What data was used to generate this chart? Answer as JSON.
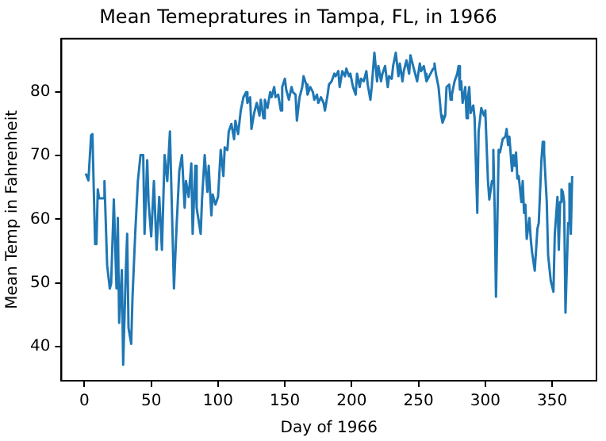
{
  "chart_data": {
    "type": "line",
    "title": "Mean Temepratures in Tampa, FL, in 1966",
    "xlabel": "Day of 1966",
    "ylabel": "Mean Temp in Fahrenheit",
    "xlim": [
      -17.2,
      383.2
    ],
    "ylim": [
      34.6,
      88.4
    ],
    "xticks": [
      0,
      50,
      100,
      150,
      200,
      250,
      300,
      350
    ],
    "yticks": [
      40,
      50,
      60,
      70,
      80
    ],
    "grid": false,
    "legend": false,
    "marker": "none",
    "line_style": "solid",
    "series": [
      {
        "color": "#1f77b4",
        "x": [
          1,
          3,
          5,
          6,
          8,
          9,
          10,
          11,
          14,
          15,
          17,
          19,
          20,
          22,
          24,
          25,
          26,
          28,
          29,
          31,
          32,
          33,
          35,
          36,
          38,
          40,
          42,
          44,
          45,
          47,
          48,
          50,
          52,
          54,
          56,
          58,
          60,
          62,
          64,
          67,
          69,
          71,
          73,
          75,
          76,
          78,
          80,
          81,
          83,
          84,
          87,
          88,
          90,
          92,
          93,
          95,
          96,
          98,
          100,
          102,
          104,
          105,
          107,
          108,
          110,
          112,
          113,
          115,
          117,
          119,
          121,
          122,
          124,
          125,
          127,
          129,
          131,
          132,
          134,
          135,
          137,
          139,
          140,
          142,
          143,
          145,
          147,
          148,
          150,
          151,
          153,
          155,
          156,
          158,
          159,
          161,
          163,
          164,
          166,
          167,
          169,
          171,
          172,
          174,
          175,
          177,
          179,
          180,
          182,
          183,
          185,
          187,
          188,
          190,
          191,
          193,
          195,
          196,
          198,
          199,
          201,
          203,
          204,
          206,
          207,
          209,
          211,
          212,
          214,
          215,
          217,
          219,
          220,
          222,
          223,
          225,
          227,
          228,
          230,
          231,
          233,
          235,
          236,
          238,
          239,
          241,
          243,
          244,
          246,
          247,
          249,
          251,
          252,
          254,
          255,
          256,
          258,
          259,
          261,
          262,
          263,
          265,
          267,
          268,
          270,
          271,
          273,
          274,
          275,
          277,
          279,
          280,
          281,
          282,
          283,
          285,
          286,
          287,
          288,
          289,
          291,
          292,
          294,
          295,
          297,
          299,
          300,
          302,
          303,
          305,
          306,
          307,
          308,
          310,
          311,
          313,
          315,
          316,
          317,
          318,
          320,
          321,
          322,
          323,
          324,
          325,
          327,
          328,
          329,
          330,
          331,
          333,
          334,
          335,
          337,
          339,
          340,
          342,
          343,
          344,
          346,
          347,
          349,
          351,
          352,
          354,
          355,
          356,
          357,
          358,
          359,
          360,
          362,
          363,
          364,
          365
        ],
        "values": [
          67.2,
          66.1,
          73.2,
          73.4,
          56.1,
          56.1,
          64.7,
          63.3,
          63.3,
          66,
          52.8,
          49.1,
          49.9,
          63.1,
          49.1,
          60.2,
          43.7,
          52,
          37.1,
          52,
          57.7,
          42.9,
          40.4,
          47.8,
          57.7,
          66,
          70.1,
          70.1,
          57.7,
          69.3,
          62.7,
          57.3,
          66,
          55.2,
          63.5,
          55.2,
          70.1,
          66,
          73.8,
          49.1,
          59,
          67.6,
          70.1,
          61.8,
          66,
          63.5,
          68.8,
          57.7,
          68.4,
          61.8,
          57.7,
          63.1,
          70.1,
          64.3,
          68.4,
          60.6,
          63.9,
          62.3,
          63.5,
          70.9,
          66.8,
          71.3,
          70.9,
          73.8,
          75,
          72.6,
          75.5,
          73.4,
          77.1,
          79.2,
          80,
          78.3,
          79.2,
          74.2,
          76.7,
          78.3,
          76.3,
          78.8,
          75.9,
          78.8,
          77.5,
          80,
          79.2,
          80.8,
          79.2,
          79.6,
          77.1,
          80.8,
          82.1,
          80.4,
          78.8,
          80.8,
          80,
          79.6,
          75.5,
          79.2,
          80.8,
          82.5,
          81.2,
          79.6,
          80.8,
          80,
          78.8,
          79.6,
          78.3,
          79.2,
          78.3,
          77.1,
          79.6,
          81.2,
          81.7,
          82.9,
          82.5,
          83.3,
          80.8,
          83.3,
          82.5,
          83.7,
          82.5,
          82.9,
          80.8,
          79.6,
          82.9,
          80.8,
          82.1,
          81.7,
          83.3,
          81.2,
          78.8,
          80.8,
          86.2,
          81.7,
          84.1,
          81.7,
          82.9,
          84.1,
          80.8,
          82.5,
          82.1,
          84.1,
          86.2,
          82.5,
          84.5,
          81.7,
          83.3,
          85,
          82.9,
          85.8,
          84.1,
          83.3,
          81.7,
          84.5,
          83.3,
          84.1,
          82.9,
          81.7,
          82.5,
          82.9,
          83.7,
          84.5,
          82.9,
          80.8,
          76.3,
          75.2,
          76.3,
          80.8,
          81.2,
          78.8,
          79.6,
          81.7,
          82.9,
          84.1,
          80.4,
          81.7,
          78.3,
          80.8,
          75.9,
          79.2,
          80.8,
          76.7,
          77.9,
          75.9,
          61,
          73.8,
          77.5,
          76.3,
          77.1,
          66,
          63.1,
          66,
          70.9,
          61.8,
          47.8,
          70.9,
          70.5,
          72.6,
          73,
          74.2,
          71.7,
          73,
          67.6,
          70.1,
          68.4,
          70.5,
          66.4,
          66.8,
          62.7,
          66,
          61,
          62.3,
          56.9,
          60.2,
          56.9,
          54.8,
          51.9,
          58.5,
          59.4,
          69.3,
          72.2,
          70.5,
          62.7,
          54.4,
          50.3,
          48.6,
          57.7,
          63.5,
          55.2,
          62.7,
          64.7,
          64.3,
          62.7,
          45.3,
          59.4,
          65.6,
          57.7,
          66.8
        ]
      }
    ]
  }
}
